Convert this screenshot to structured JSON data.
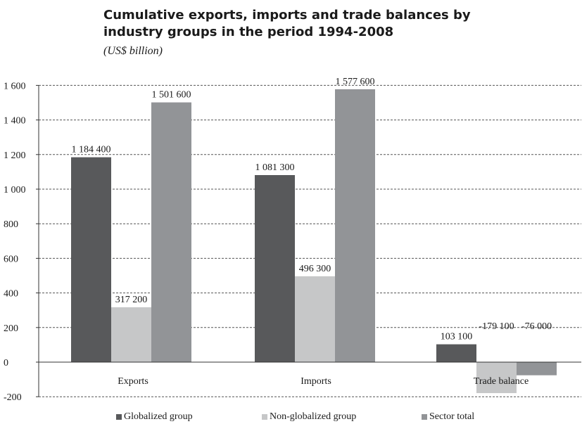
{
  "title_line1": "Cumulative exports, imports and trade balances by",
  "title_line2": "industry groups in the period 1994-2008",
  "subtitle": "(US$ billion)",
  "colors": {
    "globalized": "#58595b",
    "non_globalized": "#c6c7c8",
    "sector_total": "#929497",
    "grid": "#555555",
    "axis": "#333333"
  },
  "chart_data": {
    "type": "bar",
    "categories": [
      "Exports",
      "Imports",
      "Trade balance"
    ],
    "series": [
      {
        "name": "Globalized group",
        "values": [
          1184.4,
          1081.3,
          103.1
        ],
        "labels": [
          "1 184 400",
          "1 081 300",
          "103 100"
        ]
      },
      {
        "name": "Non-globalized group",
        "values": [
          317.2,
          496.3,
          -179.1
        ],
        "labels": [
          "317 200",
          "496 300",
          "-179 100"
        ]
      },
      {
        "name": "Sector total",
        "values": [
          1501.6,
          1577.6,
          -76.0
        ],
        "labels": [
          "1 501 600",
          "1 577 600",
          "-76 000"
        ]
      }
    ],
    "yticks": [
      -200,
      0,
      200,
      400,
      600,
      800,
      1000,
      1200,
      1400,
      1600
    ],
    "ytick_labels": [
      "-200",
      "0",
      "200",
      "400",
      "600",
      "800",
      "1 000",
      "1 200",
      "1 400",
      "1 600"
    ],
    "ylim": [
      -200,
      1600
    ],
    "grid": true,
    "legend_position": "bottom"
  }
}
